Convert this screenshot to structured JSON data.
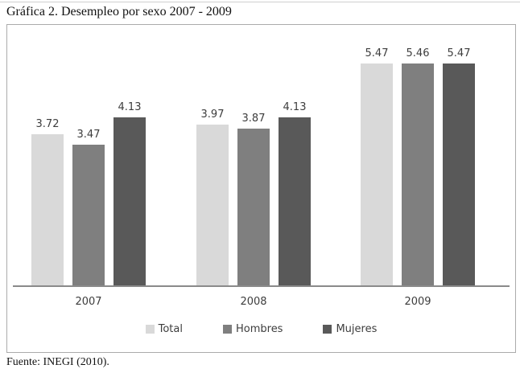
{
  "page": {
    "title": "Gráfica 2. Desempleo por sexo 2007 - 2009",
    "source": "Fuente: INEGI (2010)."
  },
  "chart_data": {
    "type": "bar",
    "title": "Gráfica 2. Desempleo por sexo 2007 - 2009",
    "categories": [
      "2007",
      "2008",
      "2009"
    ],
    "series": [
      {
        "name": "Total",
        "color": "#d9d9d9",
        "values": [
          3.72,
          3.97,
          5.47
        ]
      },
      {
        "name": "Hombres",
        "color": "#7f7f7f",
        "values": [
          3.47,
          3.87,
          5.46
        ]
      },
      {
        "name": "Mujeres",
        "color": "#595959",
        "values": [
          4.13,
          4.13,
          5.47
        ]
      }
    ],
    "xlabel": "",
    "ylabel": "",
    "ylim": [
      0,
      6
    ],
    "grid": false,
    "data_labels": true,
    "legend_position": "bottom",
    "axis_color": "#8a8a8a",
    "label_color": "#3d3d3d"
  }
}
